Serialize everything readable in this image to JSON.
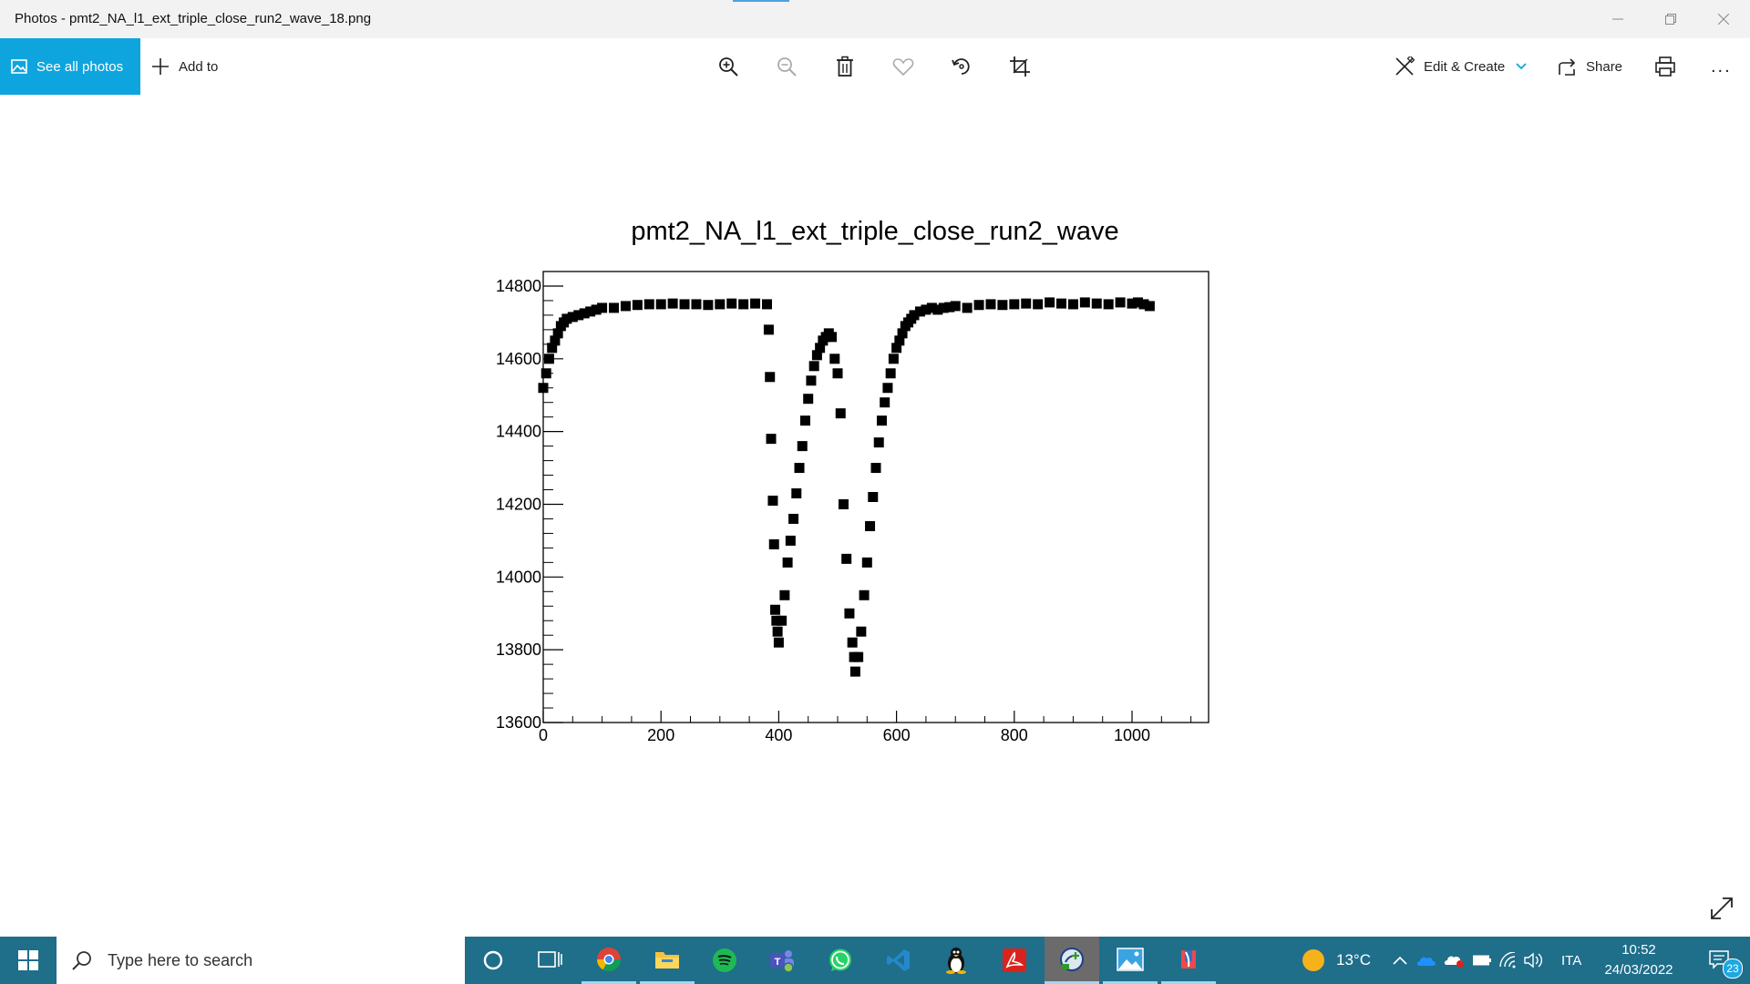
{
  "window": {
    "title": "Photos - pmt2_NA_l1_ext_triple_close_run2_wave_18.png"
  },
  "toolbar": {
    "see_all_label": "See all photos",
    "add_to_label": "Add to",
    "edit_create_label": "Edit & Create",
    "share_label": "Share",
    "more_label": "..."
  },
  "chart_data": {
    "type": "scatter",
    "title": "pmt2_NA_l1_ext_triple_close_run2_wave",
    "xlabel": "",
    "ylabel": "",
    "xlim": [
      0,
      1130
    ],
    "ylim": [
      13600,
      14840
    ],
    "x_ticks": [
      0,
      200,
      400,
      600,
      800,
      1000
    ],
    "x_tick_labels": [
      "0",
      "200",
      "400",
      "600",
      "800",
      "1000"
    ],
    "y_ticks": [
      13600,
      13800,
      14000,
      14200,
      14400,
      14600,
      14800
    ],
    "y_tick_labels": [
      "13600",
      "13800",
      "14000",
      "14200",
      "14400",
      "14600",
      "14800"
    ],
    "grid": false,
    "series": [
      {
        "marker": "square",
        "color": "#000000",
        "x": [
          0,
          5,
          10,
          15,
          20,
          25,
          30,
          35,
          40,
          50,
          60,
          70,
          80,
          90,
          100,
          120,
          140,
          160,
          180,
          200,
          220,
          240,
          260,
          280,
          300,
          320,
          340,
          360,
          380,
          383,
          385,
          387,
          390,
          392,
          394,
          396,
          398,
          400,
          405,
          410,
          415,
          420,
          425,
          430,
          435,
          440,
          445,
          450,
          455,
          460,
          465,
          470,
          475,
          480,
          485,
          490,
          495,
          500,
          505,
          510,
          515,
          520,
          525,
          528,
          530,
          535,
          540,
          545,
          550,
          555,
          560,
          565,
          570,
          575,
          580,
          585,
          590,
          595,
          600,
          605,
          610,
          615,
          620,
          625,
          630,
          640,
          650,
          660,
          670,
          680,
          690,
          700,
          720,
          740,
          760,
          780,
          800,
          820,
          840,
          860,
          880,
          900,
          920,
          940,
          960,
          980,
          1000,
          1010,
          1020,
          1030
        ],
        "y": [
          14520,
          14560,
          14600,
          14630,
          14650,
          14670,
          14690,
          14700,
          14710,
          14715,
          14720,
          14725,
          14730,
          14735,
          14740,
          14740,
          14745,
          14748,
          14750,
          14750,
          14752,
          14750,
          14750,
          14748,
          14750,
          14752,
          14750,
          14752,
          14750,
          14680,
          14550,
          14380,
          14210,
          14090,
          13910,
          13880,
          13850,
          13820,
          13880,
          13950,
          14040,
          14100,
          14160,
          14230,
          14300,
          14360,
          14430,
          14490,
          14540,
          14580,
          14610,
          14630,
          14650,
          14660,
          14670,
          14660,
          14600,
          14560,
          14450,
          14200,
          14050,
          13900,
          13820,
          13780,
          13740,
          13780,
          13850,
          13950,
          14040,
          14140,
          14220,
          14300,
          14370,
          14430,
          14480,
          14520,
          14560,
          14600,
          14630,
          14650,
          14670,
          14690,
          14700,
          14710,
          14720,
          14730,
          14735,
          14740,
          14735,
          14740,
          14742,
          14745,
          14740,
          14748,
          14750,
          14748,
          14750,
          14752,
          14750,
          14755,
          14752,
          14750,
          14755,
          14752,
          14750,
          14755,
          14752,
          14755,
          14750,
          14745
        ]
      }
    ]
  },
  "taskbar": {
    "search_placeholder": "Type here to search",
    "weather_temp": "13°C",
    "language": "ITA",
    "time": "10:52",
    "date": "24/03/2022",
    "notification_count": "23"
  },
  "colors": {
    "accent": "#0ea5de",
    "taskbar": "#1f6e8a"
  }
}
